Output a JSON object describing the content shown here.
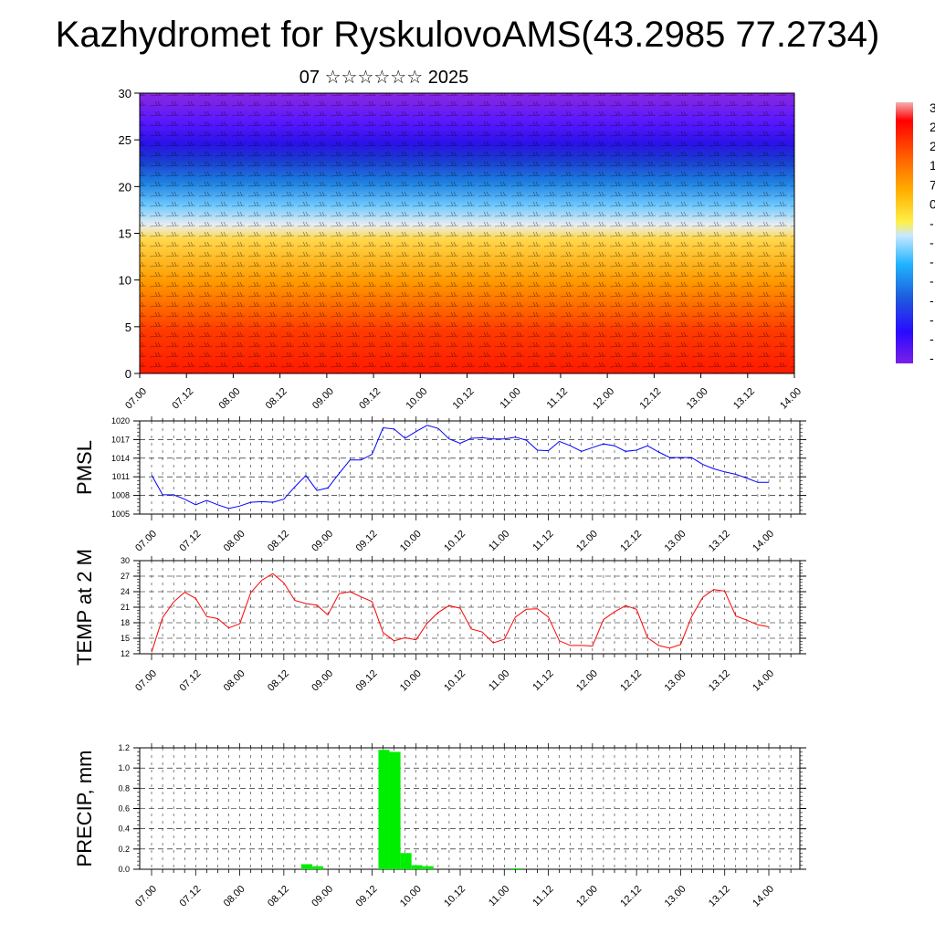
{
  "header": {
    "title": "Kazhydromet for RyskulovoAMS(43.2985 77.2734)",
    "subtitle": "07 ☆☆☆☆☆☆ 2025"
  },
  "chart_data": [
    {
      "type": "heatmap",
      "name": "vertical cross-section with wind barbs",
      "ylabel": "",
      "ylim": [
        0,
        30
      ],
      "yticks": [
        0,
        5,
        10,
        15,
        20,
        25,
        30
      ],
      "x_ticklabels": [
        "07.00",
        "07.12",
        "08.00",
        "08.12",
        "09.00",
        "09.12",
        "10.00",
        "10.12",
        "11.00",
        "11.12",
        "12.00",
        "12.12",
        "13.00",
        "13.12",
        "14.00"
      ],
      "colorbar_labels": [
        "3",
        "2",
        "2",
        "1",
        "7",
        "0",
        "-",
        "-",
        "-",
        "-",
        "-",
        "-",
        "-",
        "-"
      ],
      "colormap": [
        "#ff0000",
        "#ff6600",
        "#ffb000",
        "#fff04a",
        "#c8e8ff",
        "#20b4ff",
        "#1e5adc",
        "#2a0aff",
        "#7a20e6"
      ]
    },
    {
      "type": "line",
      "ylabel": "PMSL",
      "ylim": [
        1005,
        1020
      ],
      "yticks": [
        1005,
        1008,
        1011,
        1014,
        1017,
        1020
      ],
      "x_ticklabels": [
        "07.00",
        "07.12",
        "08.00",
        "08.12",
        "09.00",
        "09.12",
        "10.00",
        "10.12",
        "11.00",
        "11.12",
        "12.00",
        "12.12",
        "13.00",
        "13.12",
        "14.00"
      ],
      "x": [
        0,
        3,
        6,
        9,
        12,
        15,
        18,
        21,
        24,
        27,
        30,
        33,
        36,
        39,
        42,
        45,
        48,
        51,
        54,
        57,
        60,
        63,
        66,
        69,
        72,
        75,
        78,
        81,
        84,
        87,
        90,
        93,
        96,
        99,
        102,
        105,
        108,
        111,
        114,
        117,
        120,
        123,
        126,
        129,
        132,
        135,
        138,
        141,
        144,
        147,
        150,
        153,
        156,
        159,
        162,
        165,
        168
      ],
      "series": [
        {
          "color": "#0000ff",
          "values": [
            1011.3,
            1008.1,
            1008.1,
            1007.4,
            1006.5,
            1007.2,
            1006.5,
            1005.9,
            1006.3,
            1006.9,
            1007.0,
            1006.9,
            1007.4,
            1009.4,
            1011.2,
            1008.8,
            1009.2,
            1011.5,
            1013.7,
            1013.7,
            1014.6,
            1018.9,
            1018.7,
            1017.2,
            1018.3,
            1019.3,
            1018.8,
            1017.1,
            1016.4,
            1017.2,
            1017.3,
            1017.1,
            1017.1,
            1017.4,
            1016.9,
            1015.3,
            1015.2,
            1016.7,
            1016.0,
            1015.1,
            1015.7,
            1016.3,
            1016.0,
            1015.1,
            1015.3,
            1016.0,
            1015.0,
            1014.1,
            1014.1,
            1014.1,
            1013.0,
            1012.3,
            1011.8,
            1011.4,
            1010.8,
            1010.1,
            1010.1
          ]
        }
      ]
    },
    {
      "type": "line",
      "ylabel": "TEMP at 2 M",
      "ylim": [
        12,
        30
      ],
      "yticks": [
        12,
        15,
        18,
        21,
        24,
        27,
        30
      ],
      "x_ticklabels": [
        "07.00",
        "07.12",
        "08.00",
        "08.12",
        "09.00",
        "09.12",
        "10.00",
        "10.12",
        "11.00",
        "11.12",
        "12.00",
        "12.12",
        "13.00",
        "13.12",
        "14.00"
      ],
      "x": [
        0,
        3,
        6,
        9,
        12,
        15,
        18,
        21,
        24,
        27,
        30,
        33,
        36,
        39,
        42,
        45,
        48,
        51,
        54,
        57,
        60,
        63,
        66,
        69,
        72,
        75,
        78,
        81,
        84,
        87,
        90,
        93,
        96,
        99,
        102,
        105,
        108,
        111,
        114,
        117,
        120,
        123,
        126,
        129,
        132,
        135,
        138,
        141,
        144,
        147,
        150,
        153,
        156,
        159,
        162,
        165,
        168
      ],
      "series": [
        {
          "color": "#ff0000",
          "values": [
            12.3,
            19.0,
            22.0,
            23.9,
            22.7,
            19.2,
            18.8,
            17.0,
            17.8,
            23.8,
            26.2,
            27.5,
            25.7,
            22.3,
            21.7,
            21.4,
            19.5,
            23.6,
            24.0,
            23.0,
            22.1,
            16.1,
            14.5,
            15.1,
            14.7,
            17.9,
            20.0,
            21.3,
            20.8,
            16.8,
            16.2,
            14.1,
            14.8,
            19.1,
            20.6,
            20.7,
            19.1,
            14.5,
            13.6,
            13.6,
            13.5,
            18.6,
            20.1,
            21.3,
            20.6,
            15.1,
            13.6,
            13.1,
            13.8,
            19.2,
            22.9,
            24.4,
            24.1,
            19.3,
            18.5,
            17.6,
            17.2
          ]
        }
      ]
    },
    {
      "type": "bar",
      "ylabel": "PRECIP, mm",
      "ylim": [
        0,
        1.2
      ],
      "yticks": [
        "0.0",
        "0.2",
        "0.4",
        "0.6",
        "0.8",
        "1.0",
        "1.2"
      ],
      "x_ticklabels": [
        "07.00",
        "07.12",
        "08.00",
        "08.12",
        "09.00",
        "09.12",
        "10.00",
        "10.12",
        "11.00",
        "11.12",
        "12.00",
        "12.12",
        "13.00",
        "13.12",
        "14.00"
      ],
      "bar_color": "#00ee00",
      "bars": [
        {
          "x": 42,
          "value": 0.05
        },
        {
          "x": 45,
          "value": 0.03
        },
        {
          "x": 63,
          "value": 1.18
        },
        {
          "x": 66,
          "value": 1.16
        },
        {
          "x": 69,
          "value": 0.16
        },
        {
          "x": 72,
          "value": 0.04
        },
        {
          "x": 75,
          "value": 0.03
        },
        {
          "x": 99,
          "value": 0.01
        }
      ]
    }
  ]
}
